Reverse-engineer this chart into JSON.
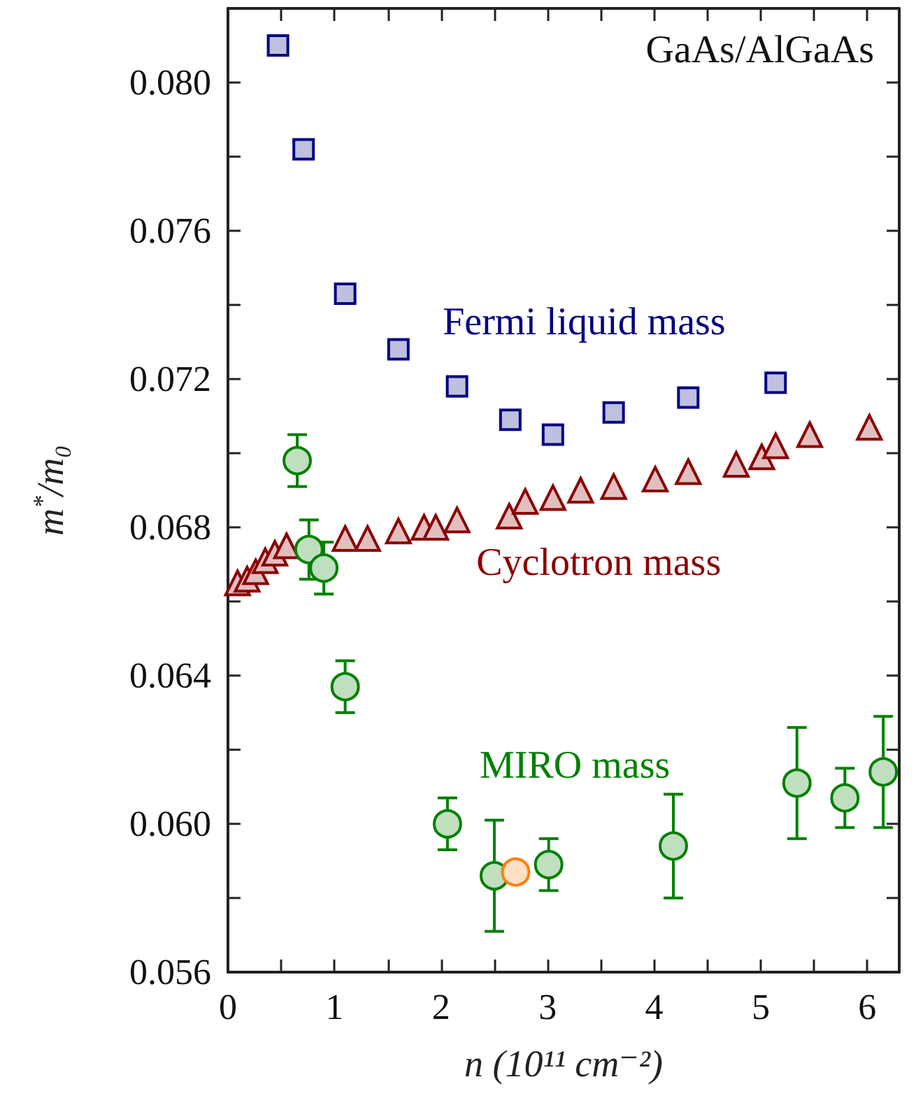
{
  "chart_data": {
    "type": "scatter",
    "xlabel": "n (10¹¹ cm⁻²)",
    "ylabel": "m$^{*}$/m₀",
    "annotations": [
      "GaAs/AlGaAs"
    ],
    "xlim": [
      0,
      6.3
    ],
    "xticks": [
      0,
      {
        "value": 0.5,
        "label": null
      },
      1,
      {
        "value": 1.5,
        "label": null
      },
      2,
      {
        "value": 2.5,
        "label": null
      },
      3,
      {
        "value": 3.5,
        "label": null
      },
      4,
      {
        "value": 4.5,
        "label": null
      },
      5,
      {
        "value": 5.5,
        "label": null
      },
      6
    ],
    "ylim": [
      0.056,
      0.082
    ],
    "yticks": [
      {
        "value": 0.056,
        "label": "0.056"
      },
      {
        "value": 0.058,
        "label": null
      },
      {
        "value": 0.06,
        "label": "0.060"
      },
      {
        "value": 0.062,
        "label": null
      },
      {
        "value": 0.064,
        "label": "0.064"
      },
      {
        "value": 0.066,
        "label": null
      },
      {
        "value": 0.068,
        "label": "0.068"
      },
      {
        "value": 0.07,
        "label": null
      },
      {
        "value": 0.072,
        "label": "0.072"
      },
      {
        "value": 0.074,
        "label": null
      },
      {
        "value": 0.076,
        "label": "0.076"
      },
      {
        "value": 0.078,
        "label": null
      },
      {
        "value": 0.08,
        "label": "0.080"
      }
    ],
    "grid": false,
    "legend": false,
    "series": [
      {
        "name": "Fermi liquid mass",
        "color": "#000080",
        "marker": "square",
        "x": [
          0.47,
          0.71,
          1.1,
          1.6,
          2.15,
          2.65,
          3.05,
          3.62,
          4.32,
          5.14
        ],
        "values": [
          0.081,
          0.0782,
          0.0743,
          0.0728,
          0.0718,
          0.0709,
          0.0705,
          0.0711,
          0.0715,
          0.0719
        ]
      },
      {
        "name": "Cyclotron mass",
        "color": "#8b0000",
        "marker": "triangle",
        "x": [
          0.09,
          0.18,
          0.26,
          0.35,
          0.44,
          0.55,
          0.81,
          1.1,
          1.31,
          1.6,
          1.84,
          1.95,
          2.15,
          2.64,
          2.79,
          3.05,
          3.31,
          3.62,
          4.01,
          4.32,
          4.77,
          5.01,
          5.14,
          5.46,
          6.02
        ],
        "values": [
          0.0665,
          0.0666,
          0.0668,
          0.0671,
          0.0673,
          0.0675,
          null,
          0.0677,
          0.0677,
          0.0679,
          0.068,
          0.068,
          0.0682,
          0.0683,
          0.0687,
          0.0688,
          0.069,
          0.0691,
          0.0693,
          0.0695,
          0.0697,
          0.0699,
          0.0702,
          0.0705,
          0.0707
        ]
      },
      {
        "name": "MIRO mass",
        "color": "#008000",
        "marker": "circle",
        "x": [
          0.65,
          0.76,
          0.9,
          1.1,
          2.06,
          2.5,
          3.01,
          4.18,
          5.34,
          5.79,
          6.15
        ],
        "values": [
          0.0698,
          0.0674,
          0.0669,
          0.0637,
          0.06,
          0.0586,
          0.0589,
          0.0594,
          0.0611,
          0.0607,
          0.0614
        ],
        "errors": [
          0.0007,
          0.0008,
          0.0007,
          0.0007,
          0.0007,
          0.0015,
          0.0007,
          0.0014,
          0.0015,
          0.0008,
          0.0015
        ]
      },
      {
        "color": "#ff7f0e",
        "marker": "circle",
        "x": [
          2.7
        ],
        "values": [
          0.0587
        ]
      }
    ]
  }
}
